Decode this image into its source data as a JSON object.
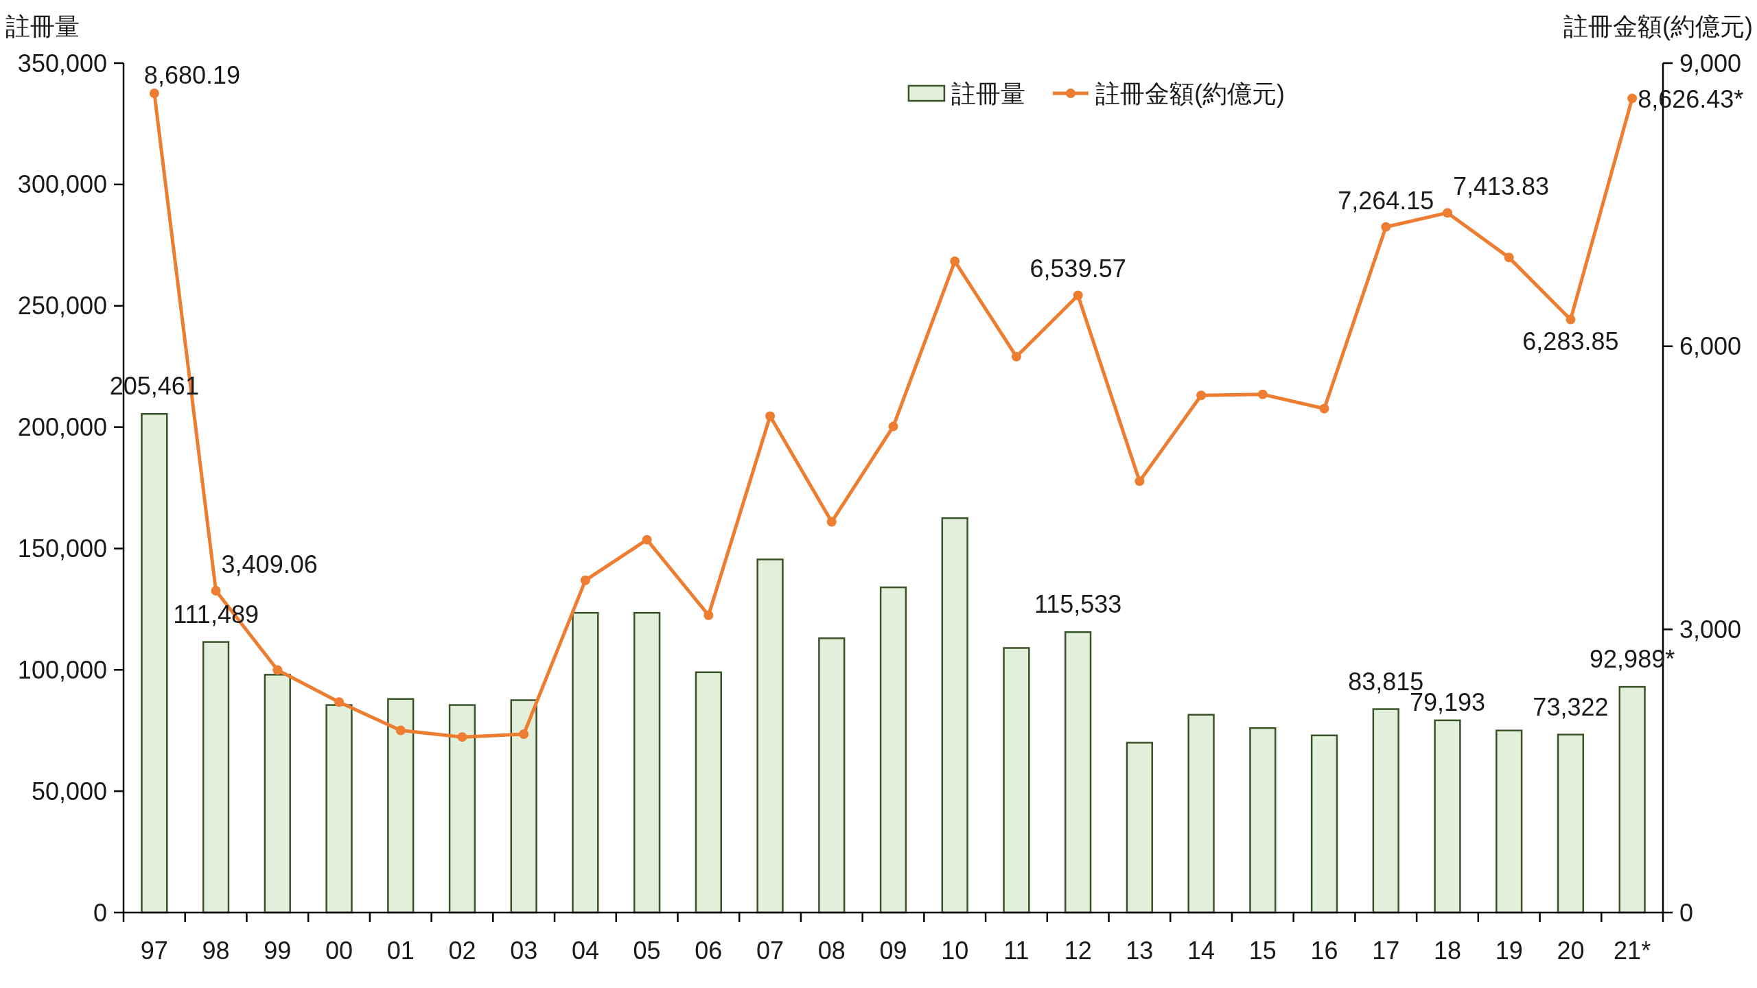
{
  "chart_data": {
    "type": "bar",
    "ylabel": "註冊量",
    "y2label": "註冊金額(約億元)",
    "categories": [
      "97",
      "98",
      "99",
      "00",
      "01",
      "02",
      "03",
      "04",
      "05",
      "06",
      "07",
      "08",
      "09",
      "10",
      "11",
      "12",
      "13",
      "14",
      "15",
      "16",
      "17",
      "18",
      "19",
      "20",
      "21*"
    ],
    "series": [
      {
        "name": "註冊量",
        "color": "#e2efda",
        "values": [
          205461,
          111489,
          98000,
          85500,
          88000,
          85500,
          87500,
          123500,
          123500,
          99000,
          145500,
          113000,
          134000,
          162500,
          109000,
          115533,
          70000,
          81500,
          76000,
          73000,
          83815,
          79193,
          75000,
          73322,
          92989
        ],
        "value_labels": [
          "205,461",
          "111,489",
          null,
          null,
          null,
          null,
          null,
          null,
          null,
          null,
          null,
          null,
          null,
          null,
          null,
          "115,533",
          null,
          null,
          null,
          null,
          "83,815",
          "79,193",
          null,
          "73,322",
          "92,989*"
        ]
      },
      {
        "name": "註冊金額(約億元)",
        "type": "line",
        "axis": "y2",
        "color": "#ed7d31",
        "marker": "circle",
        "values": [
          8680.19,
          3409.06,
          2570,
          2230,
          1930,
          1860,
          1890,
          3520,
          3950,
          3150,
          5260,
          4140,
          5150,
          6900,
          5890,
          6539.57,
          4570,
          5480,
          5490,
          5340,
          7264.15,
          7413.83,
          6940,
          6283.85,
          8626.43
        ],
        "value_labels": [
          "8,680.19",
          "3,409.06",
          null,
          null,
          null,
          null,
          null,
          null,
          null,
          null,
          null,
          null,
          null,
          null,
          null,
          "6,539.57",
          null,
          null,
          null,
          null,
          "7,264.15",
          "7,413.83",
          null,
          "6,283.85",
          "8,626.43*"
        ]
      }
    ],
    "ylim": [
      0,
      350000
    ],
    "yticks": [
      {
        "value": 0,
        "label": "0"
      },
      {
        "value": 50000,
        "label": "50,000"
      },
      {
        "value": 100000,
        "label": "100,000"
      },
      {
        "value": 150000,
        "label": "150,000"
      },
      {
        "value": 200000,
        "label": "200,000"
      },
      {
        "value": 250000,
        "label": "250,000"
      },
      {
        "value": 300000,
        "label": "300,000"
      },
      {
        "value": 350000,
        "label": "350,000"
      }
    ],
    "y2lim": [
      0,
      9000
    ],
    "y2ticks": [
      {
        "value": 0,
        "label": "0"
      },
      {
        "value": 3000,
        "label": "3,000"
      },
      {
        "value": 6000,
        "label": "6,000"
      },
      {
        "value": 9000,
        "label": "9,000"
      }
    ],
    "legend": "top right"
  }
}
